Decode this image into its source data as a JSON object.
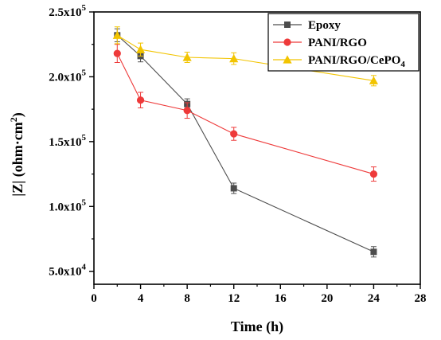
{
  "chart_data": {
    "type": "line",
    "xlabel": "Time (h)",
    "ylabel": "|Z| (ohm·cm²)",
    "xlim": [
      0,
      28
    ],
    "ylim": [
      40000,
      250000
    ],
    "x_ticks": [
      0,
      4,
      8,
      12,
      16,
      20,
      24,
      28
    ],
    "x_tick_labels": [
      "0",
      "4",
      "8",
      "12",
      "16",
      "20",
      "24",
      "28"
    ],
    "y_ticks": [
      50000,
      100000,
      150000,
      200000,
      250000
    ],
    "y_tick_labels": [
      {
        "mantissa": "5.0x10",
        "exp": "4"
      },
      {
        "mantissa": "1.0x10",
        "exp": "5"
      },
      {
        "mantissa": "1.5x10",
        "exp": "5"
      },
      {
        "mantissa": "2.0x10",
        "exp": "5"
      },
      {
        "mantissa": "2.5x10",
        "exp": "5"
      }
    ],
    "ylabel_parts": {
      "pre": "|Z| (ohm·cm",
      "sup": "2",
      "post": ")"
    },
    "legend_position": "top-right",
    "x": [
      2,
      4,
      8,
      12,
      24
    ],
    "series": [
      {
        "name": "Epoxy",
        "legend_parts": {
          "main": "Epoxy",
          "sub": ""
        },
        "color": "#4d4d4d",
        "marker": "square",
        "values": [
          232000,
          216000,
          179000,
          114000,
          65000
        ],
        "errors": [
          5000,
          4500,
          4000,
          4000,
          4000
        ]
      },
      {
        "name": "PANI/RGO",
        "legend_parts": {
          "main": "PANI/RGO",
          "sub": ""
        },
        "color": "#ee3a3a",
        "marker": "circle",
        "values": [
          218000,
          182000,
          174000,
          156000,
          125000
        ],
        "errors": [
          7000,
          6000,
          6000,
          5000,
          5500
        ]
      },
      {
        "name": "PANI/RGO/CePO4",
        "legend_parts": {
          "main": "PANI/RGO/CePO",
          "sub": "4"
        },
        "color": "#f2c400",
        "marker": "triangle",
        "values": [
          232000,
          221000,
          215000,
          214000,
          197000
        ],
        "errors": [
          6500,
          5000,
          4000,
          4500,
          4000
        ]
      }
    ]
  }
}
